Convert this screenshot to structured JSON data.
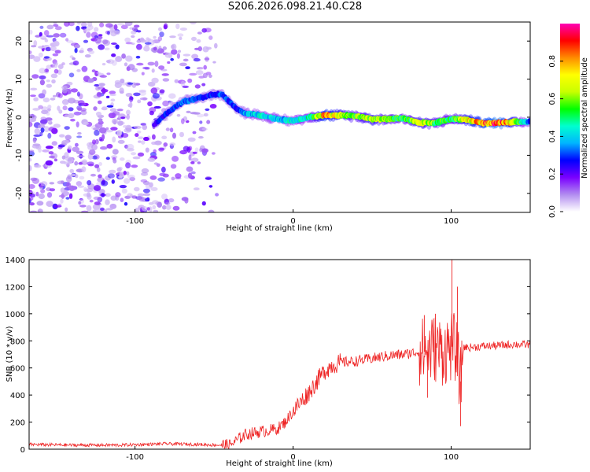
{
  "title": "S206.2026.098.21.40.C28",
  "chart_data": [
    {
      "type": "heatmap",
      "name": "spectrogram",
      "xlabel": "Height of straight line (km)",
      "ylabel": "Frequency (Hz)",
      "xlim": [
        -167,
        150
      ],
      "ylim": [
        -25,
        25
      ],
      "xticks": [
        -100,
        0,
        100
      ],
      "yticks": [
        -20,
        -10,
        0,
        10,
        20
      ],
      "colorbar": {
        "label": "Normalized spectral amplitude",
        "range": [
          0,
          1
        ],
        "ticks": [
          0.0,
          0.2,
          0.4,
          0.6,
          0.8
        ],
        "tick_labels": [
          "0.0",
          "0.2",
          "0.4",
          "0.6",
          "0.8"
        ],
        "colors": [
          "#ffffff",
          "#b28cf0",
          "#7a00ff",
          "#0000ff",
          "#00b4ff",
          "#00ffd0",
          "#00ff00",
          "#c8ff00",
          "#ffff00",
          "#ff8c00",
          "#ff0000",
          "#ff00b4"
        ]
      },
      "ridge": {
        "description_free": true,
        "x": [
          -88,
          -80,
          -70,
          -60,
          -50,
          -45,
          -40,
          -35,
          -30,
          -20,
          -10,
          0,
          10,
          20,
          30,
          40,
          50,
          60,
          70,
          80,
          90,
          100,
          110,
          120,
          130,
          140,
          150
        ],
        "frequency": [
          -2,
          1,
          4,
          5,
          6,
          6,
          4,
          2,
          1,
          0.5,
          -0.5,
          -1,
          0,
          0.5,
          0.5,
          0.3,
          -0.5,
          -0.5,
          -0.3,
          -1.5,
          -1.5,
          -0.5,
          -0.7,
          -1.5,
          -1.5,
          -1.2,
          -1.2
        ],
        "amplitude": [
          0.25,
          0.3,
          0.35,
          0.3,
          0.3,
          0.35,
          0.3,
          0.3,
          0.4,
          0.45,
          0.4,
          0.45,
          0.5,
          0.85,
          0.7,
          0.6,
          0.7,
          0.6,
          0.55,
          0.7,
          0.6,
          0.55,
          0.75,
          0.85,
          0.95,
          0.7,
          0.3
        ]
      }
    },
    {
      "type": "line",
      "name": "snr",
      "xlabel": "Height of straight line (km)",
      "ylabel": "SNR (10 * v/v)",
      "xlim": [
        -167,
        150
      ],
      "ylim": [
        0,
        1400
      ],
      "xticks": [
        -100,
        0,
        100
      ],
      "yticks": [
        0,
        200,
        400,
        600,
        800,
        1000,
        1200,
        1400
      ],
      "color": "#ee2222",
      "series": [
        {
          "name": "SNR",
          "x": [
            -167,
            -140,
            -110,
            -80,
            -60,
            -45,
            -40,
            -30,
            -20,
            -10,
            -5,
            0,
            5,
            10,
            15,
            20,
            25,
            30,
            40,
            50,
            60,
            70,
            80,
            85,
            90,
            95,
            100,
            103,
            106,
            108,
            110,
            120,
            130,
            140,
            150
          ],
          "y": [
            35,
            30,
            30,
            40,
            35,
            30,
            30,
            110,
            130,
            150,
            200,
            280,
            350,
            420,
            500,
            580,
            620,
            640,
            650,
            670,
            690,
            700,
            720,
            720,
            750,
            720,
            760,
            740,
            500,
            760,
            750,
            760,
            765,
            775,
            770
          ]
        }
      ],
      "spikes": [
        {
          "x": 100.5,
          "y": 1400
        },
        {
          "x": 106,
          "y": 170
        },
        {
          "x": 104,
          "y": 1200
        },
        {
          "x": 90,
          "y": 1000
        },
        {
          "x": 85,
          "y": 380
        },
        {
          "x": 83,
          "y": 990
        }
      ]
    }
  ]
}
